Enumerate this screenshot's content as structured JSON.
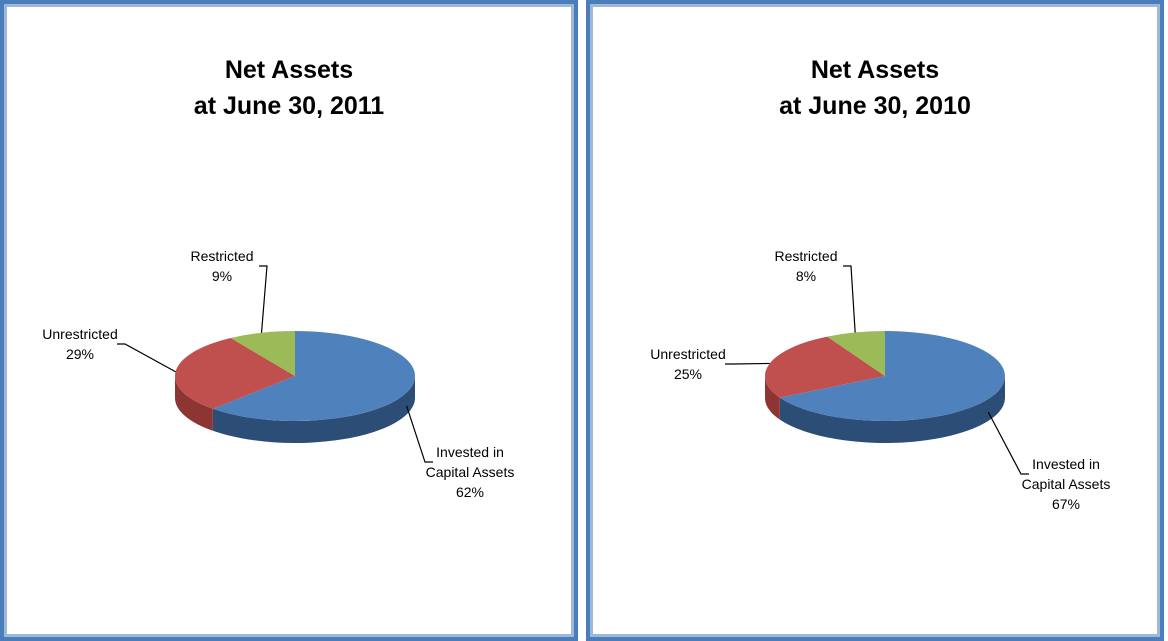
{
  "chart_data": [
    {
      "type": "pie",
      "title": "Net Assets\nat June 30, 2011",
      "categories": [
        "Invested in Capital Assets",
        "Unrestricted",
        "Restricted"
      ],
      "values": [
        62,
        29,
        9
      ],
      "value_labels": [
        "62%",
        "29%",
        "9%"
      ],
      "colors": [
        "#4f81bd",
        "#c0504d",
        "#9bbb59"
      ]
    },
    {
      "type": "pie",
      "title": "Net Assets\nat June 30, 2010",
      "categories": [
        "Invested in Capital Assets",
        "Unrestricted",
        "Restricted"
      ],
      "values": [
        67,
        25,
        8
      ],
      "value_labels": [
        "67%",
        "25%",
        "8%"
      ],
      "colors": [
        "#4f81bd",
        "#c0504d",
        "#9bbb59"
      ]
    }
  ]
}
